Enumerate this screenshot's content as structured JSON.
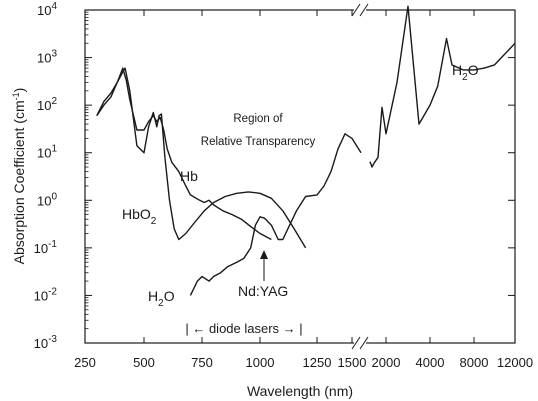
{
  "chart_data": {
    "type": "line",
    "title": "",
    "xlabel": "Wavelength (nm)",
    "ylabel": "Absorption Coefficient (cm",
    "ylabel_sup": "-1",
    "ylabel_close": ")",
    "y_scale": "log",
    "ylim": [
      0.001,
      10000
    ],
    "x_scale": "piecewise (broken axis)",
    "x_ticks": [
      "250",
      "500",
      "750",
      "1000",
      "1250",
      "1500",
      "2000",
      "4000",
      "8000",
      "12000"
    ],
    "y_ticks": [
      {
        "base": "10",
        "exp": "-3"
      },
      {
        "base": "10",
        "exp": "-2"
      },
      {
        "base": "10",
        "exp": "-1"
      },
      {
        "base": "10",
        "exp": "0"
      },
      {
        "base": "10",
        "exp": "1"
      },
      {
        "base": "10",
        "exp": "2"
      },
      {
        "base": "10",
        "exp": "3"
      },
      {
        "base": "10",
        "exp": "4"
      }
    ],
    "series": [
      {
        "key": "Hb",
        "x": [
          300,
          330,
          360,
          390,
          410,
          425,
          440,
          470,
          500,
          520,
          540,
          555,
          570,
          585,
          600,
          620,
          650,
          680,
          700,
          740,
          760,
          780,
          800,
          840,
          880,
          920,
          960,
          1000,
          1050
        ],
        "y": [
          60,
          100,
          150,
          330,
          600,
          330,
          130,
          30,
          30,
          45,
          60,
          45,
          55,
          30,
          12,
          6.3,
          4.0,
          2.0,
          1.3,
          1.0,
          0.9,
          1.0,
          0.8,
          0.6,
          0.5,
          0.4,
          0.28,
          0.2,
          0.15
        ]
      },
      {
        "key": "HbO2",
        "x": [
          300,
          330,
          360,
          390,
          410,
          420,
          440,
          470,
          500,
          520,
          540,
          555,
          565,
          575,
          590,
          610,
          630,
          650,
          680,
          720,
          760,
          800,
          850,
          900,
          950,
          1000,
          1050,
          1100,
          1150,
          1200
        ],
        "y": [
          60,
          120,
          180,
          320,
          500,
          600,
          200,
          14,
          10,
          35,
          70,
          35,
          60,
          65,
          8.0,
          1.0,
          0.25,
          0.15,
          0.2,
          0.35,
          0.6,
          0.9,
          1.2,
          1.4,
          1.5,
          1.4,
          1.1,
          0.6,
          0.25,
          0.1
        ]
      },
      {
        "key": "H2O",
        "x": [
          700,
          730,
          750,
          780,
          800,
          830,
          860,
          900,
          930,
          960,
          980,
          1000,
          1020,
          1050,
          1080,
          1100,
          1130,
          1160,
          1200,
          1250,
          1300,
          1350,
          1400,
          1450,
          1500,
          1550,
          1600,
          1650,
          1700,
          1800,
          1900,
          2000,
          2500,
          3000,
          3500,
          4000,
          4700,
          5500,
          6000,
          7000,
          8000,
          9000,
          10000,
          12000
        ],
        "y": [
          0.01,
          0.02,
          0.025,
          0.02,
          0.025,
          0.03,
          0.04,
          0.05,
          0.06,
          0.1,
          0.3,
          0.45,
          0.42,
          0.3,
          0.15,
          0.15,
          0.3,
          0.6,
          1.2,
          1.3,
          2.0,
          4.0,
          12,
          25,
          20,
          10,
          6.5,
          5.0,
          6.0,
          8.0,
          90,
          25,
          300,
          12000,
          40,
          100,
          250,
          2500,
          700,
          550,
          550,
          600,
          700,
          2000
        ]
      }
    ],
    "annotations": [
      {
        "key": "region_line1",
        "text": "Region of"
      },
      {
        "key": "region_line2",
        "text": "Relative Transparency"
      },
      {
        "key": "hb",
        "text": "Hb"
      },
      {
        "key": "hbo2",
        "text": "HbO",
        "sub": "2"
      },
      {
        "key": "h2o_low",
        "text": "H",
        "sub": "2",
        "after": "O"
      },
      {
        "key": "h2o_high",
        "text": "H",
        "sub": "2",
        "after": "O"
      },
      {
        "key": "ndyag",
        "text": "Nd:YAG"
      },
      {
        "key": "diode",
        "text": "| ← diode lasers → |"
      }
    ],
    "legend": "none",
    "grid": false
  }
}
